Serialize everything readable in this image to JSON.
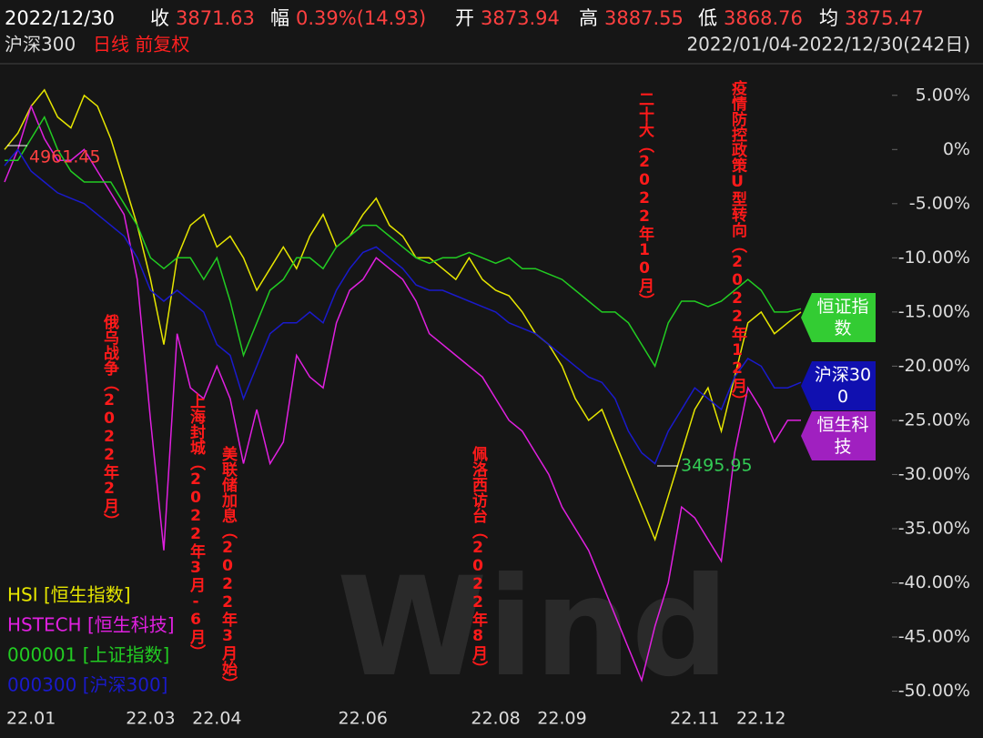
{
  "header": {
    "date": "2022/12/30",
    "close_label": "收",
    "close": "3871.63",
    "change_label": "幅",
    "change": "0.39%(14.93)",
    "open_label": "开",
    "open": "3873.94",
    "high_label": "高",
    "high": "3887.55",
    "low_label": "低",
    "low": "3868.76",
    "avg_label": "均",
    "avg": "3875.47",
    "index_name": "沪深300",
    "mode": "日线 前复权",
    "range": "2022/01/04-2022/12/30(242日)"
  },
  "tags": [
    "恒证指数",
    "沪深300",
    "恒生科技"
  ],
  "chart_data": {
    "type": "line",
    "categories": [
      null,
      null,
      "22.01",
      null,
      null,
      null,
      null,
      null,
      null,
      null,
      null,
      "22.03",
      null,
      null,
      null,
      null,
      "22.04",
      null,
      null,
      null,
      null,
      null,
      null,
      null,
      null,
      null,
      null,
      "22.06",
      null,
      null,
      null,
      null,
      null,
      null,
      null,
      null,
      null,
      "22.08",
      null,
      null,
      null,
      null,
      "22.09",
      null,
      null,
      null,
      null,
      null,
      null,
      null,
      null,
      null,
      "22.11",
      null,
      null,
      null,
      null,
      "22.12",
      null,
      null,
      null
    ],
    "ylim": [
      -51.3,
      7.5
    ],
    "yticks": [
      {
        "value": 5,
        "label": "5.00%"
      },
      {
        "value": 0,
        "label": "0%"
      },
      {
        "value": -5,
        "label": "-5.00%"
      },
      {
        "value": -10,
        "label": "-10.00%"
      },
      {
        "value": -15,
        "label": "-15.00%"
      },
      {
        "value": -20,
        "label": "-20.00%"
      },
      {
        "value": -25,
        "label": "-25.00%"
      },
      {
        "value": -30,
        "label": "-30.00%"
      },
      {
        "value": -35,
        "label": "-35.00%"
      },
      {
        "value": -40,
        "label": "-40.00%"
      },
      {
        "value": -45,
        "label": "-45.00%"
      },
      {
        "value": -50,
        "label": "-50.00%"
      }
    ],
    "series": [
      {
        "name": "HSI [恒生指数]",
        "color": "#e6e600",
        "values": [
          0,
          1.5,
          4,
          5.5,
          3,
          2,
          5,
          4,
          1,
          -3,
          -7,
          -12,
          -18,
          -10,
          -7,
          -6,
          -9,
          -8,
          -10,
          -13,
          -11,
          -9,
          -11,
          -8,
          -6,
          -9,
          -8,
          -6,
          -4.5,
          -7,
          -8,
          -10,
          -10,
          -11,
          -12,
          -10,
          -12,
          -13,
          -13.5,
          -15,
          -17,
          -18,
          -20,
          -23,
          -25,
          -24,
          -27,
          -30,
          -33,
          -36,
          -32,
          -28,
          -24,
          -22,
          -26,
          -21,
          -16,
          -15,
          -17,
          -16,
          -15
        ]
      },
      {
        "name": "HSTECH [恒生科技]",
        "color": "#e020e0",
        "values": [
          -3,
          0,
          4,
          1,
          -1,
          -1,
          0,
          -2,
          -4,
          -6,
          -12,
          -25,
          -37,
          -17,
          -22,
          -23,
          -20,
          -23,
          -29,
          -24,
          -29,
          -27,
          -19,
          -21,
          -22,
          -16,
          -13,
          -12,
          -10,
          -11,
          -12,
          -14,
          -17,
          -18,
          -19,
          -20,
          -21,
          -23,
          -25,
          -26,
          -28,
          -30,
          -33,
          -35,
          -37,
          -40,
          -43,
          -46,
          -49,
          -44,
          -40,
          -33,
          -34,
          -36,
          -38,
          -28,
          -22,
          -24,
          -27,
          -25,
          -25
        ]
      },
      {
        "name": "000001 [上证指数]",
        "color": "#22cc22",
        "values": [
          -1,
          -1,
          1,
          3,
          0,
          -2,
          -3,
          -3,
          -3,
          -5,
          -7,
          -10,
          -11,
          -10,
          -10,
          -12,
          -10,
          -14,
          -19,
          -16,
          -13,
          -12,
          -10,
          -10,
          -11,
          -9,
          -8,
          -7,
          -7,
          -8,
          -9,
          -10,
          -10.5,
          -10,
          -10,
          -9.5,
          -10,
          -10.5,
          -10,
          -11,
          -11,
          -11.5,
          -12,
          -13,
          -14,
          -15,
          -15,
          -16,
          -18,
          -20,
          -16,
          -14,
          -14,
          -14.5,
          -14,
          -13,
          -12,
          -13,
          -15,
          -15,
          -14.7
        ]
      },
      {
        "name": "000300 [沪深300]",
        "color": "#1a1acc",
        "values": [
          -1.5,
          0,
          -2,
          -3,
          -4,
          -4.5,
          -5,
          -6,
          -7,
          -8,
          -10,
          -13,
          -14,
          -13,
          -14,
          -15,
          -18,
          -19,
          -23,
          -20,
          -17,
          -16,
          -16,
          -15,
          -16,
          -13,
          -11,
          -9.5,
          -9,
          -10,
          -11,
          -12.5,
          -13,
          -13,
          -13.5,
          -14,
          -14.5,
          -15,
          -16,
          -16.5,
          -17,
          -18,
          -19,
          -20,
          -21,
          -21.5,
          -23,
          -26,
          -28,
          -29,
          -26,
          -24,
          -22,
          -23,
          -24,
          -21,
          -19.3,
          -20,
          -22,
          -22,
          -21.5
        ]
      }
    ],
    "annotations": [
      "俄乌战争（2022年2月）",
      "上海封城（2022年3月-6月）",
      "美联储加息（2022年3月始）",
      "佩洛西访台（2022年8月）",
      "二十大（2022年10月）",
      "疫情防控政策U型转向（2022年12月）"
    ],
    "max_label": "4961.45",
    "min_label": "3495.95"
  }
}
